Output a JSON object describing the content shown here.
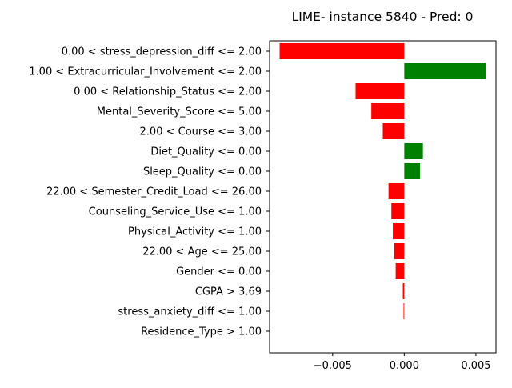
{
  "chart_data": {
    "type": "bar",
    "orientation": "horizontal",
    "title": "LIME- instance 5840 - Pred: 0",
    "xlabel": "",
    "ylabel": "",
    "grid": false,
    "xlim": [
      -0.0094,
      0.0064
    ],
    "x_ticks": [
      {
        "value": -0.005,
        "label": "−0.005"
      },
      {
        "value": 0.0,
        "label": "0.000"
      },
      {
        "value": 0.005,
        "label": "0.005"
      }
    ],
    "categories": [
      "0.00 < stress_depression_diff <= 2.00",
      "1.00 < Extracurricular_Involvement <= 2.00",
      "0.00 < Relationship_Status <= 2.00",
      "Mental_Severity_Score <= 5.00",
      "2.00 < Course <= 3.00",
      "Diet_Quality <= 0.00",
      "Sleep_Quality <= 0.00",
      "22.00 < Semester_Credit_Load <= 26.00",
      "Counseling_Service_Use <= 1.00",
      "Physical_Activity <= 1.00",
      "22.00 < Age <= 25.00",
      "Gender <= 0.00",
      "CGPA > 3.69",
      "stress_anxiety_diff <= 1.00",
      "Residence_Type > 1.00"
    ],
    "values": [
      -0.0087,
      0.0057,
      -0.0034,
      -0.0023,
      -0.0015,
      0.0013,
      0.0011,
      -0.0011,
      -0.0009,
      -0.0008,
      -0.0007,
      -0.0006,
      -0.0001,
      -5e-05,
      0.0
    ],
    "colors": {
      "positive": "#008000",
      "negative": "#ff0000"
    }
  }
}
